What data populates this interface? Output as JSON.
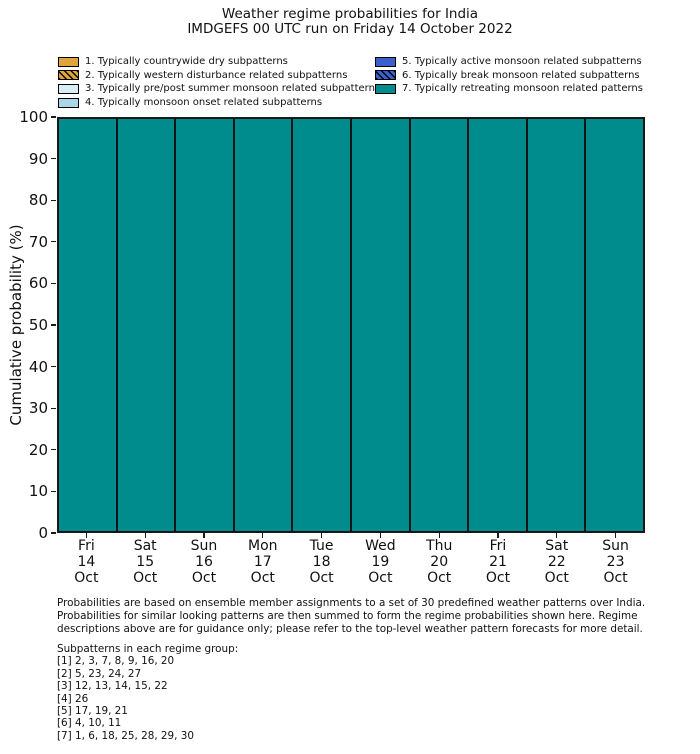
{
  "title": {
    "line1": "Weather regime probabilities for India",
    "line2": "IMDGEFS 00 UTC run on Friday 14 October 2022"
  },
  "legend": {
    "items": [
      {
        "label": "1. Typically countrywide dry subpatterns",
        "color": "#DFA43C",
        "hatch": false,
        "column": 0
      },
      {
        "label": "2. Typically western disturbance related subpatterns",
        "color": "#DFA43C",
        "hatch": true,
        "column": 0
      },
      {
        "label": "3. Typically pre/post summer monsoon related subpatterns",
        "color": "#D9EEF4",
        "hatch": false,
        "column": 0
      },
      {
        "label": "4. Typically monsoon onset related subpatterns",
        "color": "#A9D6E8",
        "hatch": false,
        "column": 0
      },
      {
        "label": "5. Typically active monsoon related subpatterns",
        "color": "#3C5FCE",
        "hatch": false,
        "column": 1
      },
      {
        "label": "6. Typically break monsoon related subpatterns",
        "color": "#3C5FCE",
        "hatch": true,
        "column": 1
      },
      {
        "label": "7. Typically retreating monsoon related patterns",
        "color": "#008B8C",
        "hatch": false,
        "column": 1
      }
    ]
  },
  "chart_data": {
    "type": "bar",
    "stacked": true,
    "title": "Weather regime probabilities for India",
    "subtitle": "IMDGEFS 00 UTC run on Friday 14 October 2022",
    "xlabel": "",
    "ylabel": "Cumulative probability (%)",
    "ylim": [
      0,
      100
    ],
    "yticks": [
      0,
      10,
      20,
      30,
      40,
      50,
      60,
      70,
      80,
      90,
      100
    ],
    "grid": false,
    "legend_position": "above-plot, two columns",
    "categories": [
      "Fri 14 Oct",
      "Sat 15 Oct",
      "Sun 16 Oct",
      "Mon 17 Oct",
      "Tue 18 Oct",
      "Wed 19 Oct",
      "Thu 20 Oct",
      "Fri 21 Oct",
      "Sat 22 Oct",
      "Sun 23 Oct"
    ],
    "x_tick_lines": [
      [
        "Fri",
        "14",
        "Oct"
      ],
      [
        "Sat",
        "15",
        "Oct"
      ],
      [
        "Sun",
        "16",
        "Oct"
      ],
      [
        "Mon",
        "17",
        "Oct"
      ],
      [
        "Tue",
        "18",
        "Oct"
      ],
      [
        "Wed",
        "19",
        "Oct"
      ],
      [
        "Thu",
        "20",
        "Oct"
      ],
      [
        "Fri",
        "21",
        "Oct"
      ],
      [
        "Sat",
        "22",
        "Oct"
      ],
      [
        "Sun",
        "23",
        "Oct"
      ]
    ],
    "series": [
      {
        "name": "1. Typically countrywide dry subpatterns",
        "color": "#DFA43C",
        "hatch": false,
        "values": [
          0,
          0,
          0,
          0,
          0,
          0,
          0,
          0,
          0,
          0
        ]
      },
      {
        "name": "2. Typically western disturbance related subpatterns",
        "color": "#DFA43C",
        "hatch": true,
        "values": [
          0,
          0,
          0,
          0,
          0,
          0,
          0,
          0,
          0,
          0
        ]
      },
      {
        "name": "3. Typically pre/post summer monsoon related subpatterns",
        "color": "#D9EEF4",
        "hatch": false,
        "values": [
          0,
          0,
          0,
          0,
          0,
          0,
          0,
          0,
          0,
          0
        ]
      },
      {
        "name": "4. Typically monsoon onset related subpatterns",
        "color": "#A9D6E8",
        "hatch": false,
        "values": [
          0,
          0,
          0,
          0,
          0,
          0,
          0,
          0,
          0,
          0
        ]
      },
      {
        "name": "5. Typically active monsoon related subpatterns",
        "color": "#3C5FCE",
        "hatch": false,
        "values": [
          0,
          0,
          0,
          0,
          0,
          0,
          0,
          0,
          0,
          0
        ]
      },
      {
        "name": "6. Typically break monsoon related subpatterns",
        "color": "#3C5FCE",
        "hatch": true,
        "values": [
          0,
          0,
          0,
          0,
          0,
          0,
          0,
          0,
          0,
          0
        ]
      },
      {
        "name": "7. Typically retreating monsoon related patterns",
        "color": "#008B8C",
        "hatch": false,
        "values": [
          100,
          100,
          100,
          100,
          100,
          100,
          100,
          100,
          100,
          100
        ]
      }
    ]
  },
  "footer": {
    "lines": [
      "Probabilities are based on ensemble member assignments to a set of 30 predefined weather patterns over India.",
      "Probabilities for similar looking patterns are then summed to form the regime probabilities shown here. Regime",
      "descriptions above are for guidance only; please refer to the top-level weather pattern forecasts for more detail."
    ]
  },
  "subpatterns": {
    "heading": "Subpatterns in each regime group:",
    "lines": [
      "[1] 2, 3, 7, 8, 9, 16, 20",
      "[2] 5, 23, 24, 27",
      "[3] 12, 13, 14, 15, 22",
      "[4] 26",
      "[5] 17, 19, 21",
      "[6] 4, 10, 11",
      "[7] 1, 6, 18, 25, 28, 29, 30"
    ]
  }
}
